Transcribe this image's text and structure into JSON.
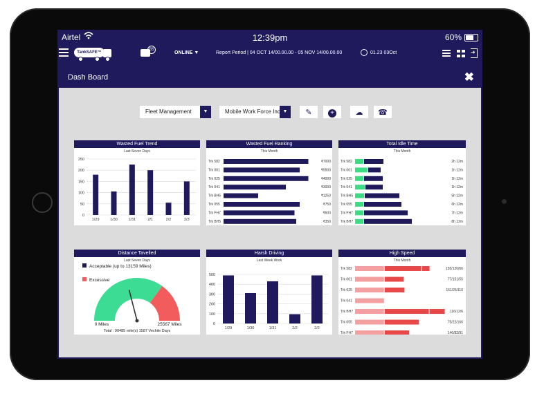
{
  "status": {
    "carrier": "Airtel",
    "time": "12:39pm",
    "battery": "60%"
  },
  "appbar": {
    "logo": "TankSAFE™",
    "chat_count": "55",
    "online": "ONLINE",
    "report_period": "Report Period | 04 OCT 14/00.00.00 - 05 NOV 14/00.00.00",
    "clock_text": "01.23  03Oct"
  },
  "page": {
    "title": "Dash Board"
  },
  "filters": {
    "fleet": "Fleet Management",
    "company": "Mobile Work Force Inc"
  },
  "colors": {
    "navy": "#1e1a5c",
    "green": "#3ddc84",
    "red": "#e84848",
    "pink": "#f4a0a0",
    "gauge_green": "#3ddc94",
    "gauge_red": "#f25c5c"
  },
  "panels": {
    "wasted_trend": {
      "title": "Wasted Fuel Trend",
      "subtitle": "Last Seven Days",
      "chart_data": {
        "type": "bar",
        "categories": [
          "1/29",
          "1/30",
          "1/31",
          "2/1",
          "2/2",
          "2/3"
        ],
        "values": [
          180,
          105,
          225,
          200,
          55,
          150
        ],
        "ylim": [
          0,
          250
        ],
        "yticks": [
          "0",
          "50",
          "100",
          "150",
          "200",
          "250"
        ]
      }
    },
    "wasted_ranking": {
      "title": "Wasted Fuel Ranking",
      "subtitle": "This Month",
      "chart_data": {
        "type": "bar",
        "categories": [
          "Trk 582",
          "Trk 001",
          "Trk 025",
          "Trk 041",
          "Trk BH5",
          "Trk 055",
          "Trk FH7",
          "Trk BH5"
        ],
        "values": [
          7000,
          5500,
          4000,
          3000,
          1250,
          750,
          600,
          350
        ],
        "labels": [
          "₹7000",
          "₹5500",
          "₹4000",
          "₹3000",
          "₹1250",
          "₹750",
          "₹600",
          "₹350"
        ],
        "fill": [
          0.98,
          0.88,
          0.98,
          0.72,
          0.4,
          0.88,
          0.82,
          0.84
        ]
      }
    },
    "idle_time": {
      "title": "Total Idle Time",
      "subtitle": "This Month",
      "chart_data": {
        "type": "bar",
        "categories": [
          "Trk 582",
          "Trk 001",
          "Trk 025",
          "Trk 041",
          "Trk BH5",
          "Trk 055",
          "Trk FH7",
          "Trk BH7"
        ],
        "labels": [
          "2h 12m",
          "1h 12m",
          "1h 12m",
          "1h 12m",
          "5h 12m",
          "6h 12m",
          "7h 12m",
          "8h 12m"
        ],
        "green": [
          0.12,
          0.18,
          0.12,
          0.14,
          0.13,
          0.12,
          0.12,
          0.12
        ],
        "navy": [
          0.28,
          0.18,
          0.27,
          0.25,
          0.5,
          0.54,
          0.63,
          0.69
        ]
      }
    },
    "distance": {
      "title": "Distance Tavelled",
      "subtitle": "Last Seven Days",
      "legend": [
        {
          "label": "Acceptable (up to 13159 Miles)",
          "color": "#1e1a5c"
        },
        {
          "label": "Excessive",
          "color": "#f25c5c"
        }
      ],
      "min_label": "0 Miles",
      "max_label": "25567 Miles",
      "total": "Total : 90485 mile(s) 1587 Vechile Days",
      "acceptable_fraction": 0.7,
      "needle_fraction": 0.42
    },
    "harsh": {
      "title": "Harsh Driving",
      "subtitle": "Last Week Work",
      "chart_data": {
        "type": "bar",
        "categories": [
          "1/29",
          "1/30",
          "1/31",
          "2/2",
          "2/2"
        ],
        "values": [
          490,
          310,
          430,
          95,
          490
        ],
        "ylim": [
          0,
          500
        ],
        "yticks": [
          "0",
          "100",
          "200",
          "300",
          "400",
          "500"
        ]
      }
    },
    "speed": {
      "title": "High Speed",
      "subtitle": "This Month",
      "chart_data": {
        "type": "bar",
        "categories": [
          "Trk 582",
          "Trk 001",
          "Trk 025",
          "Trk 041",
          "Trk BH7",
          "Trk 055",
          "Trk FH7"
        ],
        "labels": [
          "155/120/66",
          "77/151/55",
          "161/25/110",
          "",
          "116/12/6",
          "75/22/166",
          "146/82/91"
        ],
        "pink": [
          0.38,
          0.38,
          0.38,
          0.38,
          0.38,
          0.38,
          0.38
        ],
        "red": [
          0.48,
          0.25,
          0.26,
          0.0,
          0.58,
          0.45,
          0.32
        ],
        "red_extra": [
          0.1,
          0,
          0,
          0,
          0.2,
          0,
          0
        ]
      }
    }
  }
}
